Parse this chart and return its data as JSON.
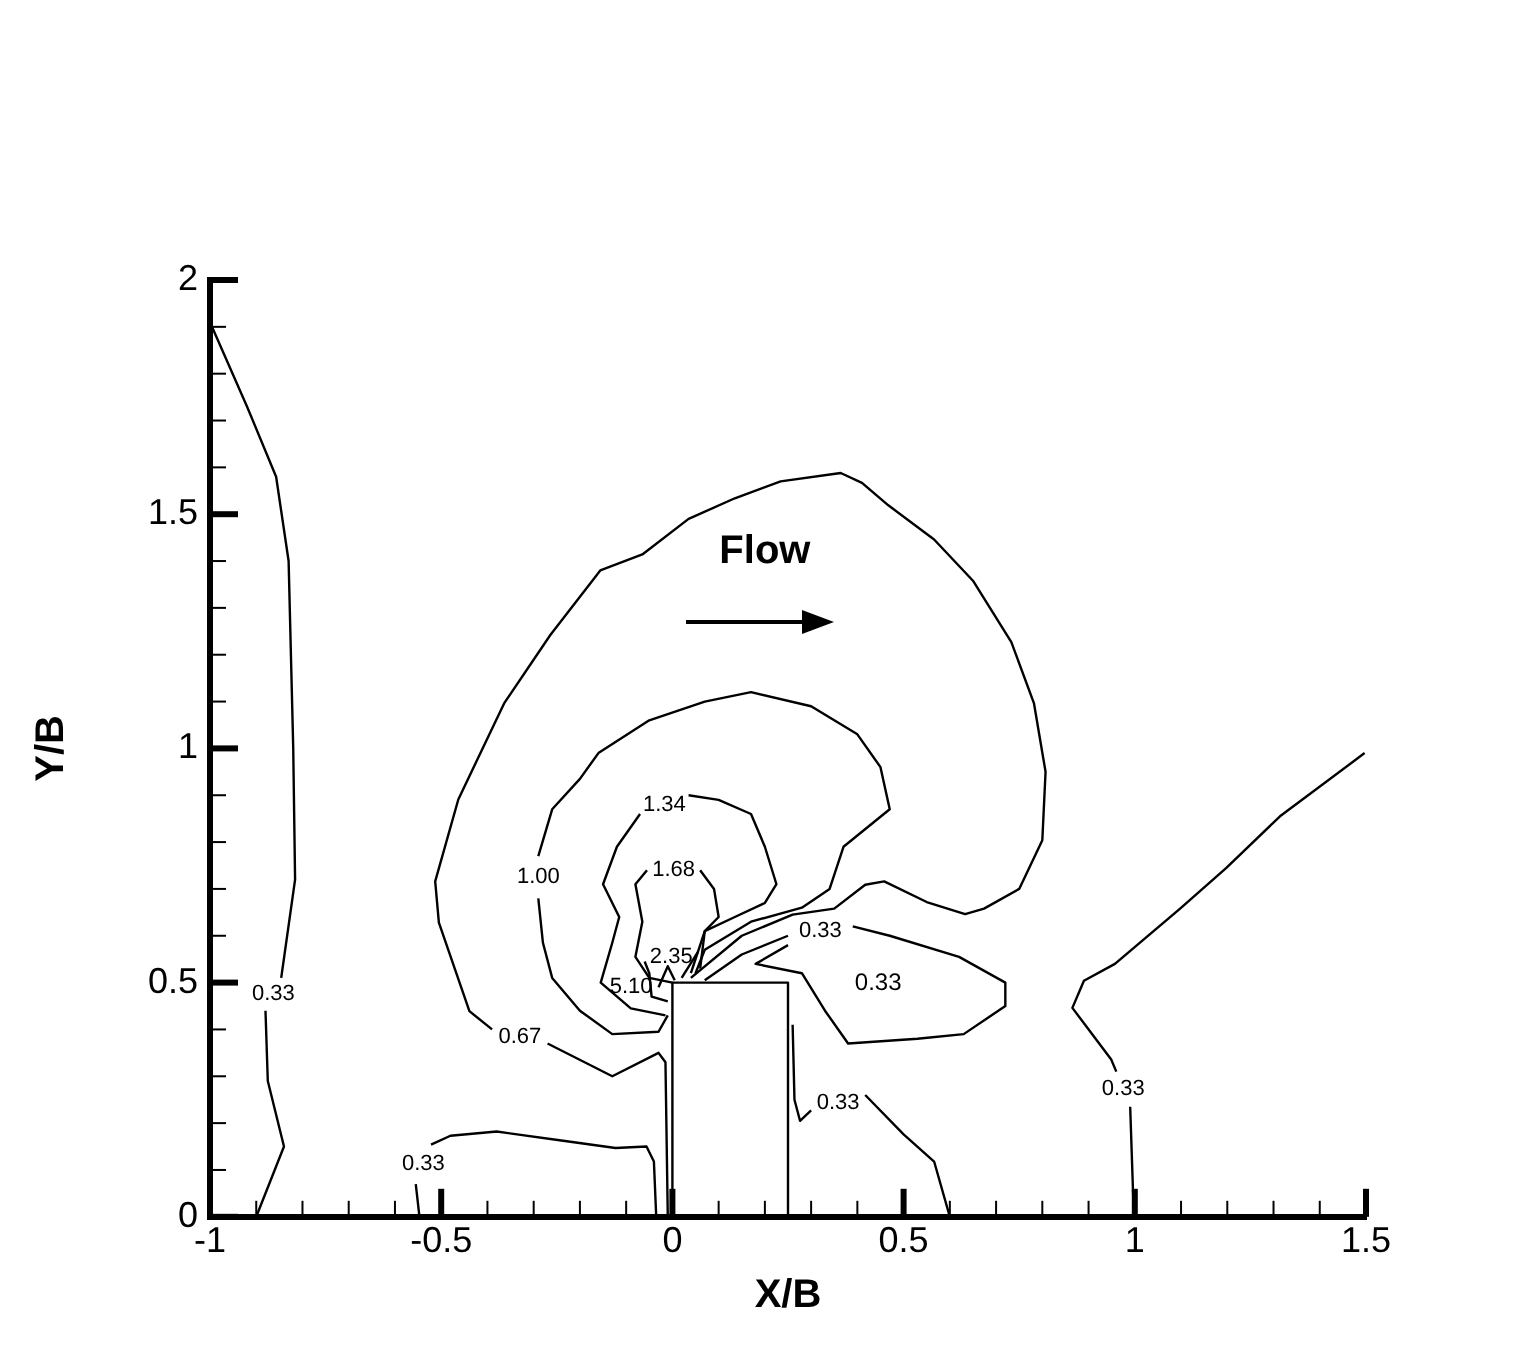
{
  "chart_data": {
    "type": "line",
    "xlabel": "X/B",
    "ylabel": "Y/B",
    "marker": "none",
    "line_style": "solid",
    "grid": false,
    "legend": false,
    "xlim": [
      -1,
      1.5
    ],
    "ylim": [
      0,
      2
    ],
    "xticks": [
      -1,
      {
        "value": -0.9,
        "label": null
      },
      {
        "value": -0.8,
        "label": null
      },
      {
        "value": -0.7,
        "label": null
      },
      {
        "value": -0.6,
        "label": null
      },
      -0.5,
      {
        "value": -0.4,
        "label": null
      },
      {
        "value": -0.3,
        "label": null
      },
      {
        "value": -0.2,
        "label": null
      },
      {
        "value": -0.1,
        "label": null
      },
      0,
      {
        "value": 0.1,
        "label": null
      },
      {
        "value": 0.2,
        "label": null
      },
      {
        "value": 0.3,
        "label": null
      },
      {
        "value": 0.4,
        "label": null
      },
      0.5,
      {
        "value": 0.6,
        "label": null
      },
      {
        "value": 0.7,
        "label": null
      },
      {
        "value": 0.8,
        "label": null
      },
      {
        "value": 0.9,
        "label": null
      },
      1,
      {
        "value": 1.1,
        "label": null
      },
      {
        "value": 1.2,
        "label": null
      },
      {
        "value": 1.3,
        "label": null
      },
      {
        "value": 1.4,
        "label": null
      },
      1.5
    ],
    "yticks": [
      0,
      {
        "value": 0.1,
        "label": null
      },
      {
        "value": 0.2,
        "label": null
      },
      {
        "value": 0.3,
        "label": null
      },
      {
        "value": 0.4,
        "label": null
      },
      0.5,
      {
        "value": 0.6,
        "label": null
      },
      {
        "value": 0.7,
        "label": null
      },
      {
        "value": 0.8,
        "label": null
      },
      {
        "value": 0.9,
        "label": null
      },
      1,
      {
        "value": 1.1,
        "label": null
      },
      {
        "value": 1.2,
        "label": null
      },
      {
        "value": 1.3,
        "label": null
      },
      {
        "value": 1.4,
        "label": null
      },
      1.5,
      {
        "value": 1.6,
        "label": null
      },
      {
        "value": 1.7,
        "label": null
      },
      {
        "value": 1.8,
        "label": null
      },
      {
        "value": 1.9,
        "label": null
      },
      2
    ],
    "series": [
      {
        "name": "0.33",
        "color": "#000000",
        "x": [
          -1.0,
          -0.92,
          -0.857,
          -0.83,
          -0.82,
          -0.816,
          -0.846,
          null,
          -0.88,
          -0.875,
          -0.84,
          -0.9
        ],
        "values": [
          1.91,
          1.73,
          1.58,
          1.4,
          1.0,
          0.72,
          0.51,
          null,
          0.44,
          0.29,
          0.15,
          0
        ]
      },
      {
        "name": "0.33",
        "color": "#000000",
        "x": [
          -0.547,
          -0.555,
          null,
          -0.522,
          -0.48,
          -0.38,
          -0.248,
          -0.123,
          -0.056,
          -0.04,
          -0.035
        ],
        "values": [
          0,
          0.07,
          null,
          0.154,
          0.173,
          0.182,
          0.164,
          0.147,
          0.15,
          0.118,
          0
        ]
      },
      {
        "name": "0.67",
        "color": "#000000",
        "x": [
          0.04,
          0.15,
          0.26,
          0.35,
          0.417,
          0.458,
          0.55,
          0.633,
          0.674,
          0.75,
          0.8,
          0.807,
          0.782,
          0.733,
          0.65,
          0.566,
          0.467,
          0.41,
          0.364,
          0.234,
          0.135,
          0.035,
          -0.065,
          -0.156,
          -0.264,
          -0.364,
          -0.463,
          -0.513,
          -0.505,
          -0.439,
          -0.39,
          null,
          -0.27,
          -0.13,
          -0.03,
          -0.015,
          -0.01
        ],
        "values": [
          0.51,
          0.6,
          0.645,
          0.658,
          0.709,
          0.716,
          0.672,
          0.646,
          0.658,
          0.7,
          0.804,
          0.95,
          1.096,
          1.227,
          1.358,
          1.446,
          1.519,
          1.567,
          1.588,
          1.57,
          1.534,
          1.49,
          1.414,
          1.38,
          1.242,
          1.096,
          0.891,
          0.716,
          0.628,
          0.439,
          0.4,
          null,
          0.37,
          0.3,
          0.35,
          0.33,
          0
        ]
      },
      {
        "name": "1.00",
        "color": "#000000",
        "x": [
          -0.01,
          -0.03,
          -0.13,
          -0.2,
          -0.26,
          -0.28,
          -0.29,
          null,
          -0.29,
          -0.26,
          -0.2,
          -0.16,
          -0.05,
          0.07,
          0.17,
          0.3,
          0.4,
          0.45,
          0.47,
          0.42,
          0.37,
          0.34,
          0.28,
          0.17,
          0.07,
          0.05
        ],
        "values": [
          0.43,
          0.395,
          0.39,
          0.44,
          0.51,
          0.585,
          0.68,
          null,
          0.77,
          0.87,
          0.935,
          0.99,
          1.06,
          1.1,
          1.12,
          1.09,
          1.03,
          0.96,
          0.87,
          0.83,
          0.79,
          0.7,
          0.66,
          0.63,
          0.57,
          0.52
        ]
      },
      {
        "name": "1.34",
        "color": "#000000",
        "x": [
          -0.015,
          -0.09,
          -0.155,
          -0.13,
          -0.115,
          -0.15,
          -0.12,
          -0.07,
          null,
          0.035,
          0.1,
          0.17,
          0.2,
          0.225,
          0.2,
          0.135,
          0.07,
          0.06
        ],
        "values": [
          0.43,
          0.445,
          0.5,
          0.585,
          0.64,
          0.71,
          0.79,
          0.86,
          null,
          0.9,
          0.89,
          0.86,
          0.79,
          0.71,
          0.67,
          0.64,
          0.61,
          0.53
        ]
      },
      {
        "name": "1.68",
        "color": "#000000",
        "x": [
          0,
          -0.05,
          -0.08,
          -0.065,
          -0.08,
          -0.055,
          null,
          0.06,
          0.09,
          0.1,
          0.07,
          0.04
        ],
        "values": [
          0.5,
          0.51,
          0.555,
          0.63,
          0.71,
          0.74,
          null,
          0.74,
          0.7,
          0.64,
          0.61,
          0.52
        ]
      },
      {
        "name": "2.35",
        "color": "#000000",
        "x": [
          -0.01,
          -0.045,
          -0.05,
          -0.06,
          null,
          0.055,
          0.02
        ],
        "values": [
          0.46,
          0.47,
          0.52,
          0.545,
          null,
          0.565,
          0.51
        ]
      },
      {
        "name": "5.10",
        "color": "#000000",
        "x": [
          null,
          -0.03,
          -0.01,
          0.005
        ],
        "values": [
          null,
          0.49,
          0.535,
          0.505
        ]
      },
      {
        "name": "0.33",
        "color": "#000000",
        "x": [
          0.07,
          0.15,
          0.25,
          null,
          0.39,
          0.47,
          0.62,
          0.72,
          0.72,
          0.63,
          0.53,
          0.38,
          0.33,
          0.28,
          0.18,
          0.25
        ],
        "values": [
          0.505,
          0.56,
          0.6,
          null,
          0.62,
          0.6,
          0.555,
          0.5,
          0.45,
          0.39,
          0.38,
          0.37,
          0.44,
          0.52,
          0.54,
          0.58
        ]
      },
      {
        "name": "0.33",
        "color": "#000000",
        "x": [
          0.26,
          0.264,
          0.276,
          0.3,
          null,
          0.417,
          0.5,
          0.566,
          0.6
        ],
        "values": [
          0.41,
          0.25,
          0.205,
          0.227,
          null,
          0.26,
          0.176,
          0.118,
          0
        ]
      },
      {
        "name": "0.33",
        "color": "#000000",
        "x": [
          1.497,
          1.314,
          1.198,
          1.098,
          0.957,
          0.89,
          0.865,
          0.949,
          0.96,
          null,
          0.99,
          0.998
        ],
        "values": [
          0.99,
          0.855,
          0.745,
          0.658,
          0.54,
          0.504,
          0.446,
          0.336,
          0.31,
          null,
          0.235,
          0
        ]
      },
      {
        "color": "#000000",
        "x": [
          0,
          0,
          0.25,
          0.25
        ],
        "values": [
          0,
          0.5,
          0.5,
          0
        ]
      }
    ],
    "annotations": [
      "Flow",
      "0.33"
    ]
  }
}
